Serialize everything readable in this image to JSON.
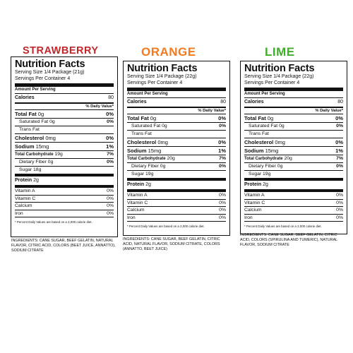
{
  "colors": {
    "strawberry": "#c0272d",
    "orange": "#f47a20",
    "lime": "#3fae2a"
  },
  "panels": [
    {
      "flavor": "STRAWBERRY",
      "title": "Nutrition Facts",
      "serving_size": "Serving Size 1/4 Package (21g)",
      "servings_per": "Servings Per Container 4",
      "amount_per": "Amount Per Serving",
      "calories_label": "Calories",
      "calories_value": "80",
      "dv_header": "% Daily Value*",
      "total_fat_label": "Total Fat",
      "total_fat_amt": "0g",
      "total_fat_pct": "0%",
      "sat_fat": "Saturated Fat 0g",
      "sat_fat_pct": "0%",
      "trans_fat": "Trans Fat",
      "chol_label": "Cholesterol",
      "chol_amt": "0mg",
      "chol_pct": "0%",
      "sodium_label": "Sodium",
      "sodium_amt": "15mg",
      "sodium_pct": "1%",
      "carb_label": "Total Carbohydrate",
      "carb_amt": "19g",
      "carb_pct": "7%",
      "fiber": "Dietary Fiber 0g",
      "fiber_pct": "0%",
      "sugar": "Sugar 18g",
      "protein_label": "Protein",
      "protein_amt": "2g",
      "vit_a": "Vitamin A",
      "vit_a_pct": "0%",
      "vit_c": "Vitamin C",
      "vit_c_pct": "0%",
      "calcium": "Calcium",
      "calcium_pct": "0%",
      "iron": "Iron",
      "iron_pct": "0%",
      "footnote": "* Percent Daily Values are based on a 2,000 calorie diet.",
      "ingredients": "INGREDIENTS: CANE SUGAR, BEEF GELATIN, NATURAL FLAVOR, CITRIC ACID, COLORS (BEET JUICE, ANNATTO), SODIUM CITRATE"
    },
    {
      "flavor": "ORANGE",
      "title": "Nutrition Facts",
      "serving_size": "Serving Size 1/4 Package (22g)",
      "servings_per": "Servings Per Container 4",
      "amount_per": "Amount Per Serving",
      "calories_label": "Calories",
      "calories_value": "80",
      "dv_header": "% Daily Value*",
      "total_fat_label": "Total Fat",
      "total_fat_amt": "0g",
      "total_fat_pct": "0%",
      "sat_fat": "Saturated Fat 0g",
      "sat_fat_pct": "0%",
      "trans_fat": "Trans Fat",
      "chol_label": "Cholesterol",
      "chol_amt": "0mg",
      "chol_pct": "0%",
      "sodium_label": "Sodium",
      "sodium_amt": "15mg",
      "sodium_pct": "1%",
      "carb_label": "Total Carbohydrate",
      "carb_amt": "20g",
      "carb_pct": "7%",
      "fiber": "Dietary Fiber 0g",
      "fiber_pct": "0%",
      "sugar": "Sugar 19g",
      "protein_label": "Protein",
      "protein_amt": "2g",
      "vit_a": "Vitamin A",
      "vit_a_pct": "0%",
      "vit_c": "Vitamin C",
      "vit_c_pct": "0%",
      "calcium": "Calcium",
      "calcium_pct": "0%",
      "iron": "Iron",
      "iron_pct": "0%",
      "footnote": "* Percent Daily Values are based on a 2,000 calorie diet.",
      "ingredients": "INGREDIENTS: CANE SUGAR, BEEF GELATIN, CITRIC ACID, NATURAL FLAVOR, SODIUM CITRATE, COLORS (ANNATTO, BEET JUICE)"
    },
    {
      "flavor": "LIME",
      "title": "Nutrition Facts",
      "serving_size": "Serving Size 1/4 Package (22g)",
      "servings_per": "Servings Per Container 4",
      "amount_per": "Amount Per Serving",
      "calories_label": "Calories",
      "calories_value": "80",
      "dv_header": "% Daily Value*",
      "total_fat_label": "Total Fat",
      "total_fat_amt": "0g",
      "total_fat_pct": "0%",
      "sat_fat": "Saturated Fat 0g",
      "sat_fat_pct": "0%",
      "trans_fat": "Trans Fat",
      "chol_label": "Cholesterol",
      "chol_amt": "0mg",
      "chol_pct": "0%",
      "sodium_label": "Sodium",
      "sodium_amt": "15mg",
      "sodium_pct": "1%",
      "carb_label": "Total Carbohydrate",
      "carb_amt": "20g",
      "carb_pct": "7%",
      "fiber": "Dietary Fiber 0g",
      "fiber_pct": "0%",
      "sugar": "Sugar 19g",
      "protein_label": "Protein",
      "protein_amt": "2g",
      "vit_a": "Vitamin A",
      "vit_a_pct": "0%",
      "vit_c": "Vitamin C",
      "vit_c_pct": "0%",
      "calcium": "Calcium",
      "calcium_pct": "0%",
      "iron": "Iron",
      "iron_pct": "0%",
      "footnote": "* Percent Daily Values are based on a 2,000 calorie diet.",
      "ingredients": "INGREDIENTS: CANE SUGAR, BEEF GELATIN, CITRIC ACID, COLORS (SPIRULINA AND TUMERIC), NATURAL FLAVOR, SODIUM CITRATE"
    }
  ]
}
